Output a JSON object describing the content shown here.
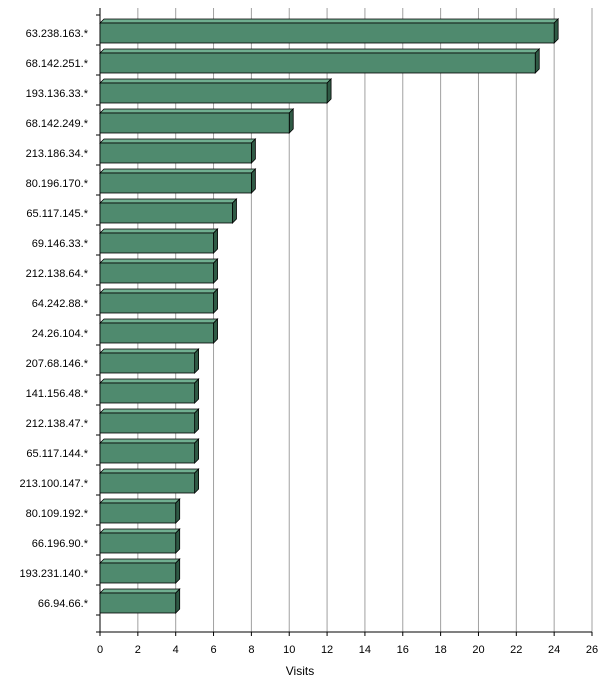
{
  "chart_data": {
    "type": "bar",
    "orientation": "horizontal",
    "categories": [
      "63.238.163.*",
      "68.142.251.*",
      "193.136.33.*",
      "68.142.249.*",
      "213.186.34.*",
      "80.196.170.*",
      "65.117.145.*",
      "69.146.33.*",
      "212.138.64.*",
      "64.242.88.*",
      "24.26.104.*",
      "207.68.146.*",
      "141.156.48.*",
      "212.138.47.*",
      "65.117.144.*",
      "213.100.147.*",
      "80.109.192.*",
      "66.196.90.*",
      "193.231.140.*",
      "66.94.66.*"
    ],
    "values": [
      24,
      23,
      12,
      10,
      8,
      8,
      7,
      6,
      6,
      6,
      6,
      5,
      5,
      5,
      5,
      5,
      4,
      4,
      4,
      4
    ],
    "xlabel": "Visits",
    "ylabel": "",
    "xlim": [
      0,
      26
    ],
    "xticks": [
      0,
      2,
      4,
      6,
      8,
      10,
      12,
      14,
      16,
      18,
      20,
      22,
      24,
      26
    ],
    "grid": true,
    "legend": "none",
    "colors": {
      "bar_front": "#4f8a6e",
      "bar_top": "#6fae8f",
      "bar_side": "#2f5a45",
      "grid": "#a0a0a0",
      "axis": "#000000"
    }
  }
}
